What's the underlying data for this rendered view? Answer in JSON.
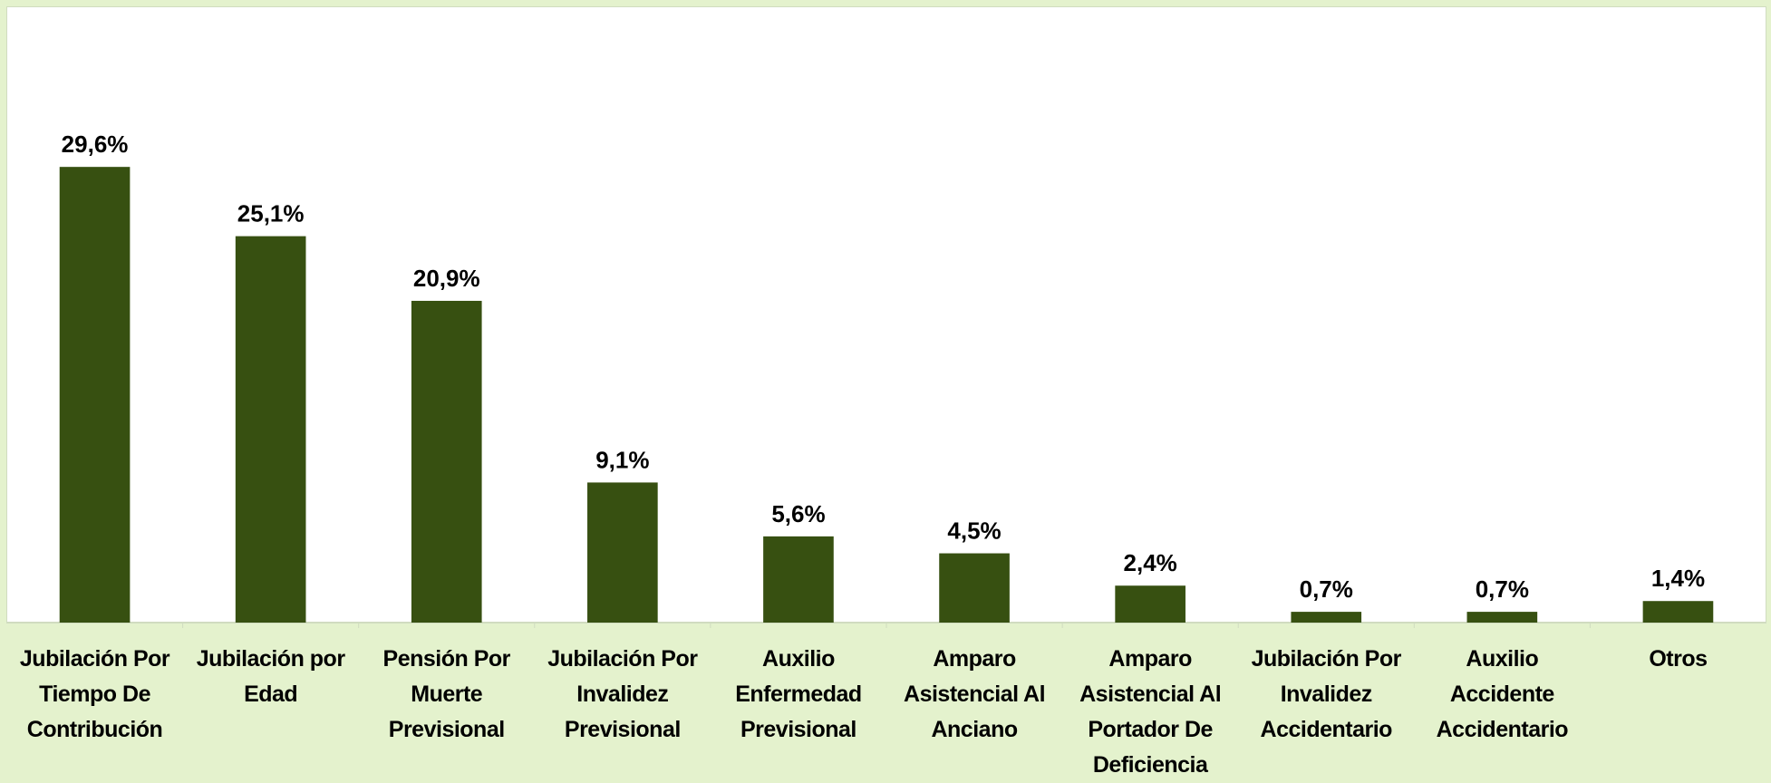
{
  "chart_data": {
    "type": "bar",
    "categories": [
      "Jubilación Por Tiempo De Contribución",
      "Jubilación por Edad",
      "Pensión Por Muerte Previsional",
      "Jubilación Por Invalidez Previsional",
      "Auxilio Enfermedad Previsional",
      "Amparo Asistencial Al Anciano",
      "Amparo Asistencial Al Portador De Deficiencia",
      "Jubilación Por Invalidez Accidentario",
      "Auxilio Accidente Accidentario",
      "Otros"
    ],
    "values": [
      29.6,
      25.1,
      20.9,
      9.1,
      5.6,
      4.5,
      2.4,
      0.7,
      0.7,
      1.4
    ],
    "value_labels": [
      "29,6%",
      "25,1%",
      "20,9%",
      "9,1%",
      "5,6%",
      "4,5%",
      "2,4%",
      "0,7%",
      "0,7%",
      "1,4%"
    ],
    "color": "#375011",
    "ylim": [
      0,
      40
    ]
  }
}
